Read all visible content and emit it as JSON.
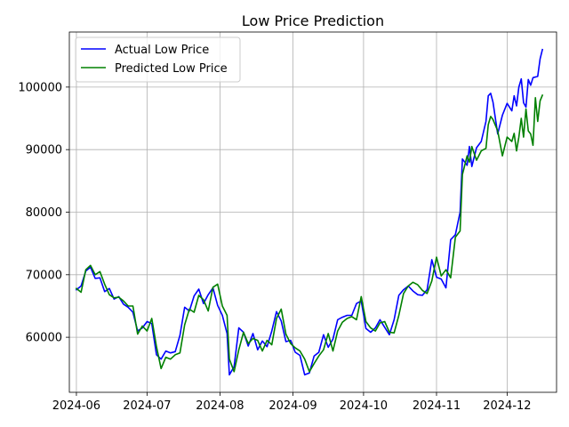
{
  "chart_data": {
    "type": "line",
    "title": "Low Price Prediction",
    "xlabel": "",
    "ylabel": "",
    "grid": true,
    "legend": "top-left",
    "x_range": [
      "2024-05-29",
      "2024-12-22"
    ],
    "ylim": [
      51200,
      108800
    ],
    "x_ticks": [
      "2024-06-01",
      "2024-07-01",
      "2024-08-01",
      "2024-09-01",
      "2024-10-01",
      "2024-11-01",
      "2024-12-01"
    ],
    "x_tick_labels": [
      "2024-06",
      "2024-07",
      "2024-08",
      "2024-09",
      "2024-10",
      "2024-11",
      "2024-12"
    ],
    "y_ticks": [
      60000,
      70000,
      80000,
      90000,
      100000
    ],
    "y_tick_labels": [
      "60000",
      "70000",
      "80000",
      "90000",
      "100000"
    ],
    "series": [
      {
        "name": "Actual Low Price",
        "color": "#0000ff",
        "points": [
          [
            "2024-06-01",
            67600
          ],
          [
            "2024-06-03",
            68200
          ],
          [
            "2024-06-05",
            70600
          ],
          [
            "2024-06-07",
            71200
          ],
          [
            "2024-06-09",
            69400
          ],
          [
            "2024-06-11",
            69500
          ],
          [
            "2024-06-13",
            67300
          ],
          [
            "2024-06-15",
            67800
          ],
          [
            "2024-06-17",
            66100
          ],
          [
            "2024-06-19",
            66500
          ],
          [
            "2024-06-21",
            65300
          ],
          [
            "2024-06-23",
            64800
          ],
          [
            "2024-06-25",
            64000
          ],
          [
            "2024-06-27",
            61000
          ],
          [
            "2024-06-29",
            61500
          ],
          [
            "2024-07-01",
            62500
          ],
          [
            "2024-07-03",
            62200
          ],
          [
            "2024-07-05",
            57200
          ],
          [
            "2024-07-07",
            56500
          ],
          [
            "2024-07-09",
            57800
          ],
          [
            "2024-07-11",
            57500
          ],
          [
            "2024-07-13",
            57700
          ],
          [
            "2024-07-15",
            60300
          ],
          [
            "2024-07-17",
            64800
          ],
          [
            "2024-07-19",
            64200
          ],
          [
            "2024-07-21",
            66600
          ],
          [
            "2024-07-23",
            67700
          ],
          [
            "2024-07-25",
            65400
          ],
          [
            "2024-07-27",
            66800
          ],
          [
            "2024-07-29",
            67900
          ],
          [
            "2024-07-31",
            65100
          ],
          [
            "2024-08-02",
            63500
          ],
          [
            "2024-08-04",
            60600
          ],
          [
            "2024-08-05",
            54000
          ],
          [
            "2024-08-07",
            55300
          ],
          [
            "2024-08-09",
            61500
          ],
          [
            "2024-08-11",
            60800
          ],
          [
            "2024-08-13",
            58600
          ],
          [
            "2024-08-15",
            60600
          ],
          [
            "2024-08-17",
            58000
          ],
          [
            "2024-08-19",
            59400
          ],
          [
            "2024-08-21",
            58500
          ],
          [
            "2024-08-23",
            61000
          ],
          [
            "2024-08-25",
            64100
          ],
          [
            "2024-08-27",
            62600
          ],
          [
            "2024-08-29",
            59300
          ],
          [
            "2024-08-31",
            59500
          ],
          [
            "2024-09-02",
            57600
          ],
          [
            "2024-09-04",
            57100
          ],
          [
            "2024-09-06",
            54000
          ],
          [
            "2024-09-08",
            54300
          ],
          [
            "2024-09-10",
            57000
          ],
          [
            "2024-09-12",
            57600
          ],
          [
            "2024-09-14",
            60400
          ],
          [
            "2024-09-16",
            58400
          ],
          [
            "2024-09-18",
            59700
          ],
          [
            "2024-09-20",
            62800
          ],
          [
            "2024-09-22",
            63200
          ],
          [
            "2024-09-24",
            63500
          ],
          [
            "2024-09-26",
            63500
          ],
          [
            "2024-09-28",
            65400
          ],
          [
            "2024-09-30",
            65800
          ],
          [
            "2024-10-02",
            61400
          ],
          [
            "2024-10-04",
            60800
          ],
          [
            "2024-10-06",
            61500
          ],
          [
            "2024-10-08",
            62800
          ],
          [
            "2024-10-10",
            61600
          ],
          [
            "2024-10-12",
            60400
          ],
          [
            "2024-10-14",
            62800
          ],
          [
            "2024-10-16",
            66700
          ],
          [
            "2024-10-18",
            67600
          ],
          [
            "2024-10-20",
            68200
          ],
          [
            "2024-10-22",
            67400
          ],
          [
            "2024-10-24",
            66800
          ],
          [
            "2024-10-26",
            66700
          ],
          [
            "2024-10-28",
            67600
          ],
          [
            "2024-10-30",
            72400
          ],
          [
            "2024-11-01",
            69600
          ],
          [
            "2024-11-03",
            69300
          ],
          [
            "2024-11-05",
            67900
          ],
          [
            "2024-11-07",
            75600
          ],
          [
            "2024-11-09",
            76400
          ],
          [
            "2024-11-11",
            80000
          ],
          [
            "2024-11-12",
            88500
          ],
          [
            "2024-11-14",
            87500
          ],
          [
            "2024-11-15",
            90500
          ],
          [
            "2024-11-16",
            87300
          ],
          [
            "2024-11-18",
            90300
          ],
          [
            "2024-11-20",
            91300
          ],
          [
            "2024-11-22",
            94500
          ],
          [
            "2024-11-23",
            98600
          ],
          [
            "2024-11-24",
            99000
          ],
          [
            "2024-11-25",
            97600
          ],
          [
            "2024-11-27",
            92500
          ],
          [
            "2024-11-29",
            95500
          ],
          [
            "2024-12-01",
            97400
          ],
          [
            "2024-12-03",
            96200
          ],
          [
            "2024-12-04",
            98600
          ],
          [
            "2024-12-05",
            97000
          ],
          [
            "2024-12-06",
            100000
          ],
          [
            "2024-12-07",
            101300
          ],
          [
            "2024-12-08",
            97500
          ],
          [
            "2024-12-09",
            96800
          ],
          [
            "2024-12-10",
            101200
          ],
          [
            "2024-12-11",
            100300
          ],
          [
            "2024-12-12",
            101500
          ],
          [
            "2024-12-14",
            101700
          ],
          [
            "2024-12-15",
            104500
          ],
          [
            "2024-12-16",
            106000
          ]
        ]
      },
      {
        "name": "Predicted Low Price",
        "color": "#008000",
        "points": [
          [
            "2024-06-01",
            67800
          ],
          [
            "2024-06-03",
            67200
          ],
          [
            "2024-06-05",
            70800
          ],
          [
            "2024-06-07",
            71500
          ],
          [
            "2024-06-09",
            70000
          ],
          [
            "2024-06-11",
            70500
          ],
          [
            "2024-06-13",
            68500
          ],
          [
            "2024-06-15",
            66800
          ],
          [
            "2024-06-17",
            66300
          ],
          [
            "2024-06-19",
            66400
          ],
          [
            "2024-06-21",
            65800
          ],
          [
            "2024-06-23",
            65000
          ],
          [
            "2024-06-25",
            65000
          ],
          [
            "2024-06-27",
            60500
          ],
          [
            "2024-06-29",
            61800
          ],
          [
            "2024-07-01",
            61000
          ],
          [
            "2024-07-03",
            63000
          ],
          [
            "2024-07-05",
            58500
          ],
          [
            "2024-07-07",
            55000
          ],
          [
            "2024-07-09",
            56800
          ],
          [
            "2024-07-11",
            56500
          ],
          [
            "2024-07-13",
            57200
          ],
          [
            "2024-07-15",
            57500
          ],
          [
            "2024-07-17",
            62000
          ],
          [
            "2024-07-19",
            64500
          ],
          [
            "2024-07-21",
            64000
          ],
          [
            "2024-07-23",
            66700
          ],
          [
            "2024-07-25",
            66000
          ],
          [
            "2024-07-27",
            64200
          ],
          [
            "2024-07-29",
            68000
          ],
          [
            "2024-07-31",
            68500
          ],
          [
            "2024-08-02",
            65000
          ],
          [
            "2024-08-04",
            63500
          ],
          [
            "2024-08-05",
            56500
          ],
          [
            "2024-08-07",
            54500
          ],
          [
            "2024-08-09",
            58000
          ],
          [
            "2024-08-11",
            60800
          ],
          [
            "2024-08-13",
            59000
          ],
          [
            "2024-08-15",
            59800
          ],
          [
            "2024-08-17",
            59500
          ],
          [
            "2024-08-19",
            57800
          ],
          [
            "2024-08-21",
            59500
          ],
          [
            "2024-08-23",
            58800
          ],
          [
            "2024-08-25",
            63000
          ],
          [
            "2024-08-27",
            64500
          ],
          [
            "2024-08-29",
            60500
          ],
          [
            "2024-08-31",
            59000
          ],
          [
            "2024-09-02",
            58300
          ],
          [
            "2024-09-04",
            57800
          ],
          [
            "2024-09-06",
            56500
          ],
          [
            "2024-09-08",
            54500
          ],
          [
            "2024-09-10",
            55800
          ],
          [
            "2024-09-12",
            57000
          ],
          [
            "2024-09-14",
            58000
          ],
          [
            "2024-09-16",
            60600
          ],
          [
            "2024-09-18",
            57800
          ],
          [
            "2024-09-20",
            61000
          ],
          [
            "2024-09-22",
            62400
          ],
          [
            "2024-09-24",
            63000
          ],
          [
            "2024-09-26",
            63300
          ],
          [
            "2024-09-28",
            62800
          ],
          [
            "2024-09-30",
            66500
          ],
          [
            "2024-10-02",
            62500
          ],
          [
            "2024-10-04",
            61500
          ],
          [
            "2024-10-06",
            61000
          ],
          [
            "2024-10-08",
            62300
          ],
          [
            "2024-10-10",
            62500
          ],
          [
            "2024-10-12",
            60800
          ],
          [
            "2024-10-14",
            60700
          ],
          [
            "2024-10-16",
            63500
          ],
          [
            "2024-10-18",
            67000
          ],
          [
            "2024-10-20",
            68200
          ],
          [
            "2024-10-22",
            68800
          ],
          [
            "2024-10-24",
            68400
          ],
          [
            "2024-10-26",
            67500
          ],
          [
            "2024-10-28",
            67000
          ],
          [
            "2024-10-30",
            69000
          ],
          [
            "2024-11-01",
            72800
          ],
          [
            "2024-11-03",
            69800
          ],
          [
            "2024-11-05",
            70800
          ],
          [
            "2024-11-07",
            69500
          ],
          [
            "2024-11-09",
            76000
          ],
          [
            "2024-11-11",
            77000
          ],
          [
            "2024-11-12",
            86000
          ],
          [
            "2024-11-14",
            89000
          ],
          [
            "2024-11-15",
            88000
          ],
          [
            "2024-11-16",
            90500
          ],
          [
            "2024-11-18",
            88300
          ],
          [
            "2024-11-20",
            89800
          ],
          [
            "2024-11-22",
            90200
          ],
          [
            "2024-11-23",
            94000
          ],
          [
            "2024-11-24",
            95300
          ],
          [
            "2024-11-25",
            94800
          ],
          [
            "2024-11-27",
            93000
          ],
          [
            "2024-11-29",
            89000
          ],
          [
            "2024-12-01",
            92000
          ],
          [
            "2024-12-03",
            91300
          ],
          [
            "2024-12-04",
            92600
          ],
          [
            "2024-12-05",
            89800
          ],
          [
            "2024-12-06",
            92000
          ],
          [
            "2024-12-07",
            95000
          ],
          [
            "2024-12-08",
            92000
          ],
          [
            "2024-12-09",
            96500
          ],
          [
            "2024-12-10",
            93000
          ],
          [
            "2024-12-11",
            92500
          ],
          [
            "2024-12-12",
            90700
          ],
          [
            "2024-12-13",
            98300
          ],
          [
            "2024-12-14",
            94500
          ],
          [
            "2024-12-15",
            97800
          ],
          [
            "2024-12-16",
            98700
          ]
        ]
      }
    ]
  }
}
